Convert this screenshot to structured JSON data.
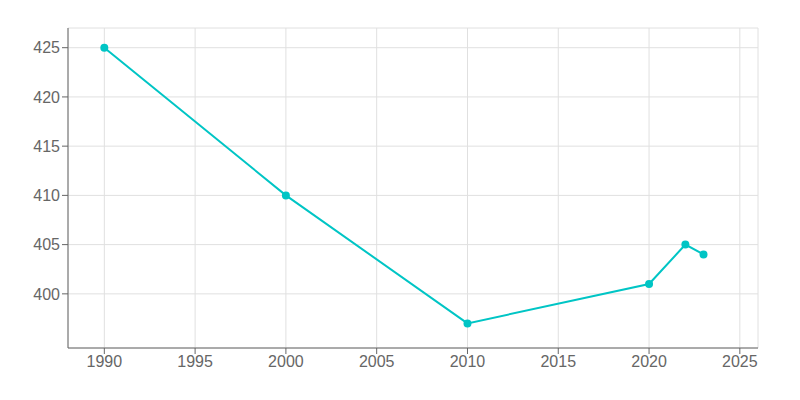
{
  "chart_data": {
    "type": "line",
    "x": [
      1990,
      2000,
      2010,
      2020,
      2022,
      2023
    ],
    "values": [
      425,
      410,
      397,
      401,
      405,
      404
    ],
    "color": "#00C5C5",
    "marker": "circle",
    "xlim": [
      1988,
      2026
    ],
    "ylim": [
      394.5,
      427
    ],
    "xticks": [
      1990,
      1995,
      2000,
      2005,
      2010,
      2015,
      2020,
      2025
    ],
    "yticks": [
      400,
      405,
      410,
      415,
      420,
      425
    ],
    "grid": true
  }
}
